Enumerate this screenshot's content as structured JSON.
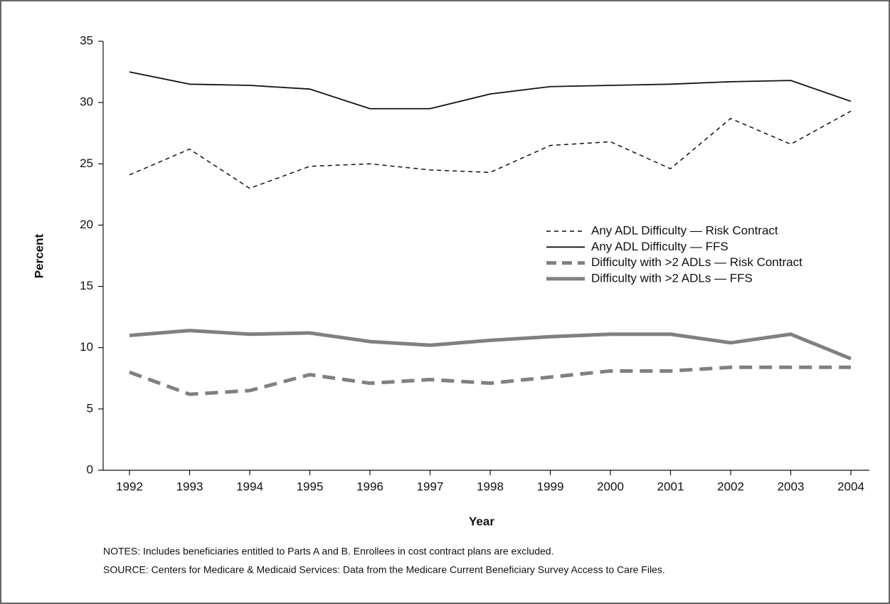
{
  "chart_data": {
    "type": "line",
    "x_label": "Year",
    "y_label": "Percent",
    "categories": [
      "1992",
      "1993",
      "1994",
      "1995",
      "1996",
      "1997",
      "1998",
      "1999",
      "2000",
      "2001",
      "2002",
      "2003",
      "2004"
    ],
    "series": [
      {
        "name": "Any ADL Difficulty — Risk Contract",
        "color": "#111111",
        "line_style": "dashed",
        "line_width": 1.5,
        "values": [
          24.1,
          26.2,
          23.0,
          24.8,
          25.0,
          24.5,
          24.3,
          26.5,
          26.8,
          24.6,
          28.7,
          26.6,
          29.3
        ]
      },
      {
        "name": "Any ADL Difficulty — FFS",
        "color": "#111111",
        "line_style": "solid",
        "line_width": 1.8,
        "values": [
          32.5,
          31.5,
          31.4,
          31.1,
          29.5,
          29.5,
          30.7,
          31.3,
          31.4,
          31.5,
          31.7,
          31.8,
          30.1
        ]
      },
      {
        "name": "Difficulty with >2 ADLs — Risk Contract",
        "color": "#808080",
        "line_style": "dashed",
        "line_width": 5,
        "values": [
          8.0,
          6.2,
          6.5,
          7.8,
          7.1,
          7.4,
          7.1,
          7.6,
          8.1,
          8.1,
          8.4,
          8.4,
          8.4
        ]
      },
      {
        "name": "Difficulty with >2 ADLs — FFS",
        "color": "#808080",
        "line_style": "solid",
        "line_width": 5,
        "values": [
          11.0,
          11.4,
          11.1,
          11.2,
          10.5,
          10.2,
          10.6,
          10.9,
          11.1,
          11.1,
          10.4,
          11.1,
          9.1
        ]
      }
    ],
    "ylim": [
      0,
      35
    ],
    "yticks": [
      0,
      5,
      10,
      15,
      20,
      25,
      30,
      35
    ],
    "grid": false,
    "notes": "NOTES: Includes beneficiaries entitled to Parts A and B. Enrollees in cost contract plans are excluded.",
    "source": "SOURCE: Centers for Medicare & Medicaid Services: Data from the Medicare Current Beneficiary Survey Access to Care Files."
  }
}
